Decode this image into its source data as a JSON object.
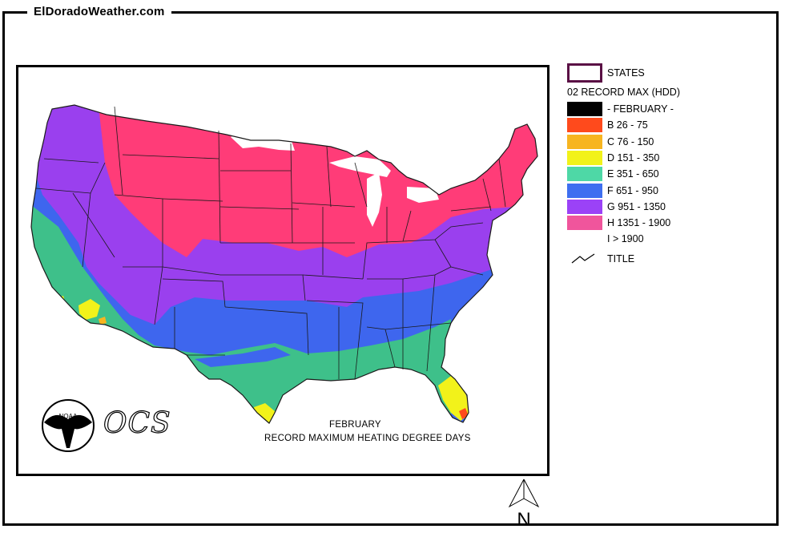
{
  "site": {
    "title": "ElDoradoWeather.com"
  },
  "map": {
    "caption_month": "FEBRUARY",
    "caption_title": "RECORD MAXIMUM HEATING DEGREE DAYS",
    "logo_noaa_text": "NOAA",
    "logo_ocs_text": "OCS",
    "north_label": "N"
  },
  "legend": {
    "states_label": "STATES",
    "header": "02 RECORD MAX (HDD)",
    "title_label": "TITLE",
    "items": [
      {
        "label": "- FEBRUARY -",
        "color": "#000000"
      },
      {
        "label": "B 26 - 75",
        "color": "#ff4a1c"
      },
      {
        "label": "C 76 - 150",
        "color": "#f7b520"
      },
      {
        "label": "D 151 - 350",
        "color": "#f2f21a"
      },
      {
        "label": "E 351 - 650",
        "color": "#4ed8a6"
      },
      {
        "label": "F 651 - 950",
        "color": "#3e6ff0"
      },
      {
        "label": "G 951 - 1350",
        "color": "#9b42f7"
      },
      {
        "label": "H 1351 - 1900",
        "color": "#f0559c"
      },
      {
        "label": "I > 1900",
        "color": "#ffffff"
      }
    ]
  },
  "map_colors": {
    "teal_region": "#3ec08a",
    "blue_region": "#3e66ee",
    "purple_region": "#9a40ee",
    "pink_region": "#ff3c78",
    "yellow_region": "#f2f21a",
    "border": "#1a1a1a"
  }
}
